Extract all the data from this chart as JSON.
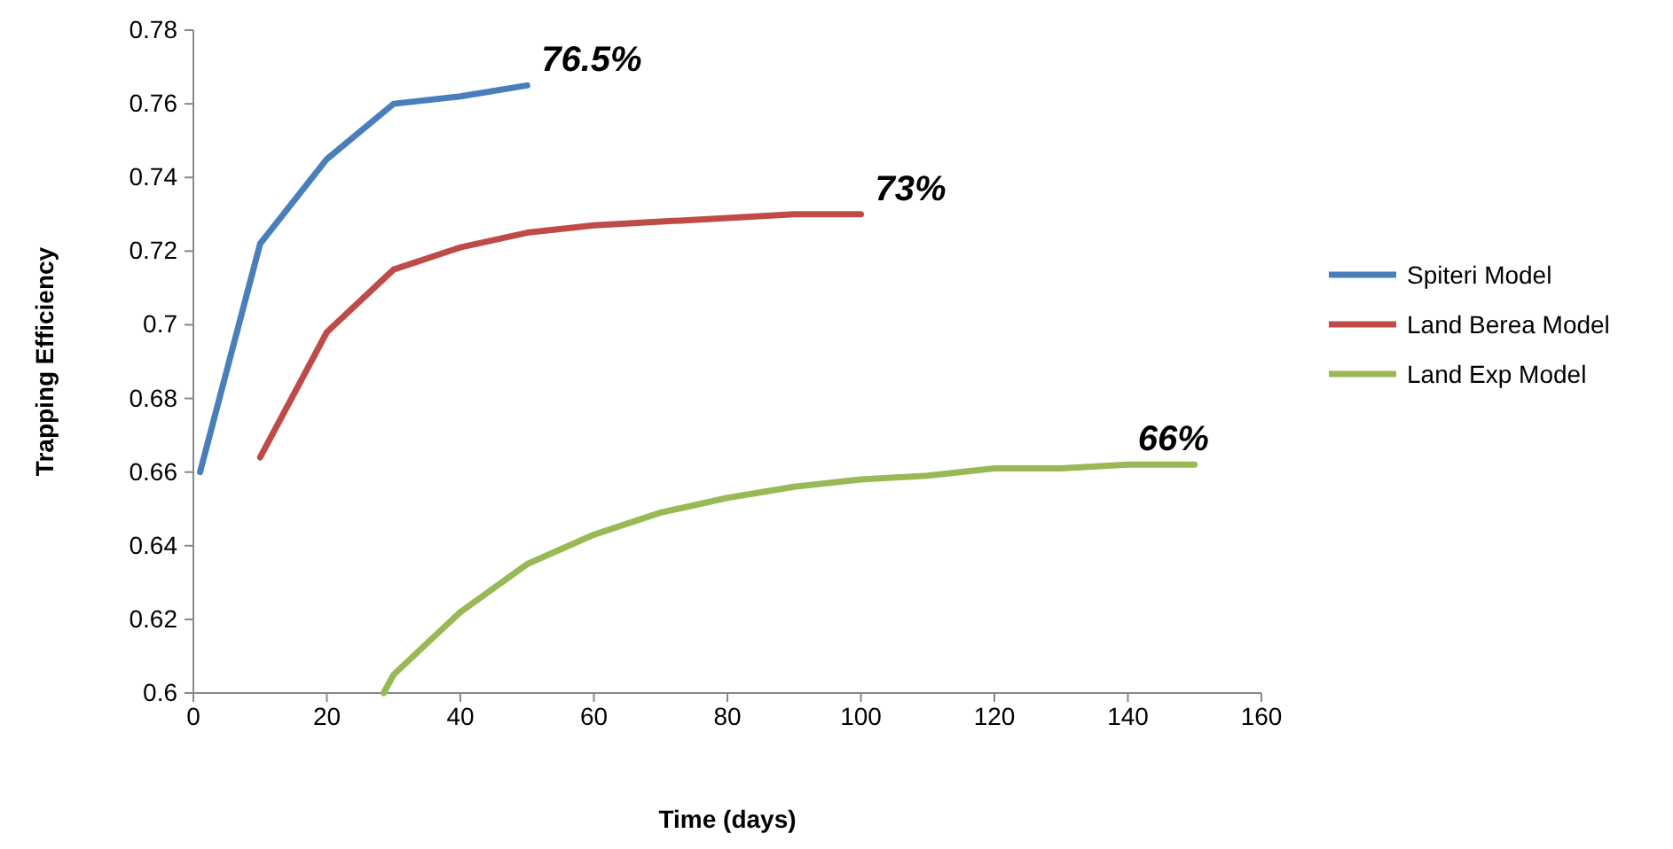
{
  "chart_data": {
    "type": "line",
    "xlabel": "Time (days)",
    "ylabel": "Trapping Efficiency",
    "xlim": [
      0,
      160
    ],
    "xticks": [
      0,
      20,
      40,
      60,
      80,
      100,
      120,
      140,
      160
    ],
    "ylim": [
      0.6,
      0.78
    ],
    "yticks": [
      0.6,
      0.62,
      0.64,
      0.66,
      0.68,
      0.7,
      0.72,
      0.74,
      0.76,
      0.78
    ],
    "grid": false,
    "legend": "right",
    "marker": "none",
    "line_style": "solid",
    "series": [
      {
        "name": "Spiteri Model",
        "color": "#4a7ebb",
        "x": [
          1,
          10,
          20,
          30,
          40,
          50
        ],
        "values": [
          0.66,
          0.722,
          0.745,
          0.76,
          0.762,
          0.765
        ]
      },
      {
        "name": "Land Berea Model",
        "color": "#be4b48",
        "x": [
          10,
          20,
          30,
          40,
          50,
          60,
          70,
          80,
          90,
          100
        ],
        "values": [
          0.664,
          0.698,
          0.715,
          0.721,
          0.725,
          0.727,
          0.728,
          0.729,
          0.73,
          0.73
        ]
      },
      {
        "name": "Land Exp Model",
        "color": "#98b954",
        "x": [
          28.5,
          30,
          40,
          50,
          60,
          70,
          80,
          90,
          100,
          110,
          120,
          130,
          140,
          150
        ],
        "values": [
          0.6,
          0.605,
          0.622,
          0.635,
          0.643,
          0.649,
          0.653,
          0.656,
          0.658,
          0.659,
          0.661,
          0.661,
          0.662,
          0.662
        ]
      }
    ],
    "annotations": [
      {
        "text": "76.5%",
        "x": 50,
        "y": 0.765
      },
      {
        "text": "73%",
        "x": 100,
        "y": 0.73
      },
      {
        "text": "66%",
        "x": 150,
        "y": 0.662
      }
    ]
  }
}
